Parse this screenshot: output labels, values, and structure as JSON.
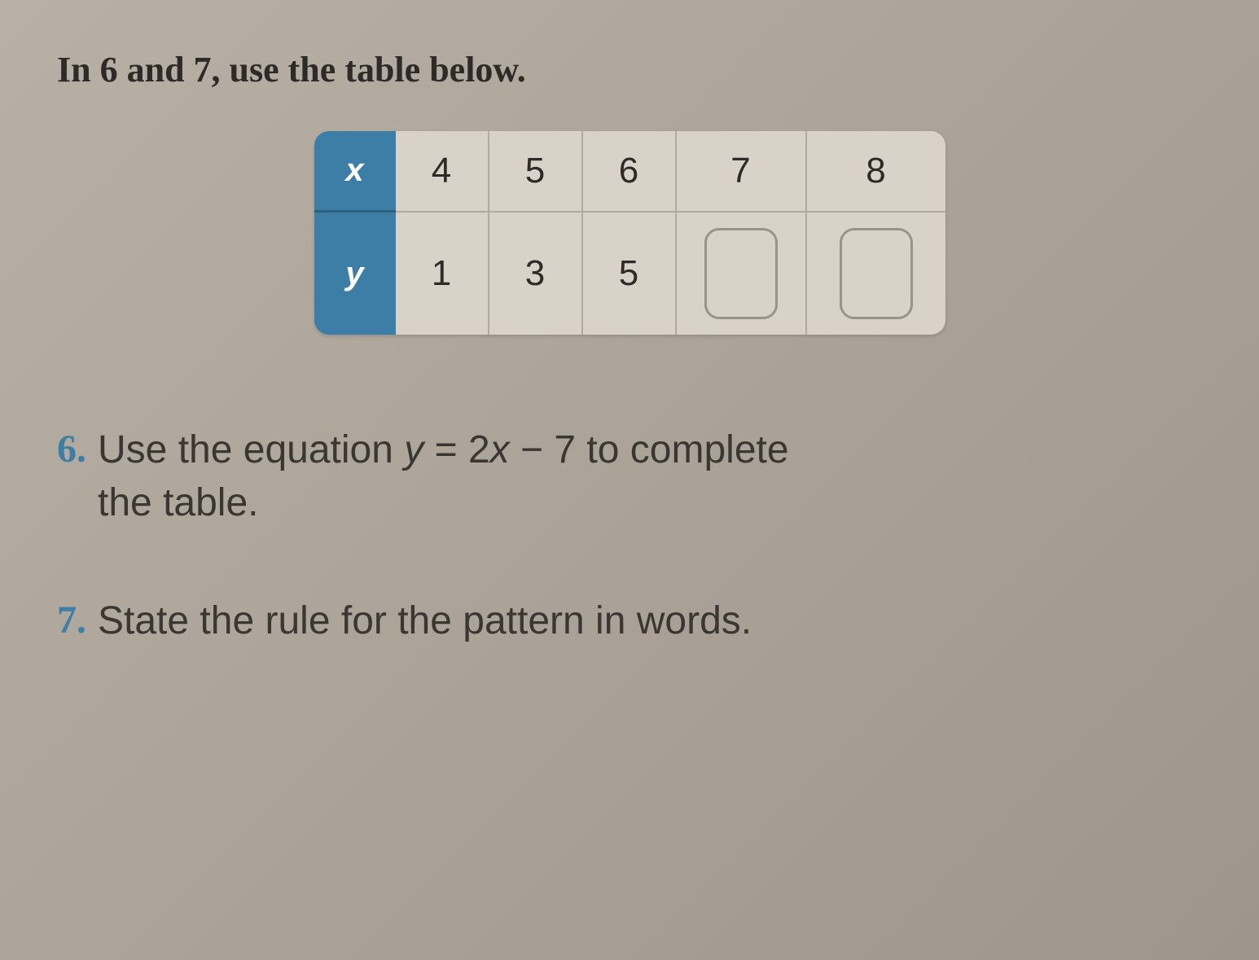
{
  "instruction": "In 6 and 7, use the table below.",
  "table": {
    "header_x": "x",
    "header_y": "y",
    "header_bg": "#3d7ea6",
    "header_color": "#ffffff",
    "cell_bg": "#d8d2c8",
    "x_values": [
      "4",
      "5",
      "6",
      "7",
      "8"
    ],
    "y_values": [
      "1",
      "3",
      "5",
      "",
      ""
    ],
    "y_blank_indices": [
      3,
      4
    ]
  },
  "questions": {
    "q6": {
      "number": "6.",
      "prefix": "Use the equation ",
      "equation_y": "y",
      "equation_mid": " = 2",
      "equation_x": "x",
      "equation_end": " − 7 to complete",
      "line2": "the table."
    },
    "q7": {
      "number": "7.",
      "text": "State the rule for the pattern in words."
    }
  }
}
